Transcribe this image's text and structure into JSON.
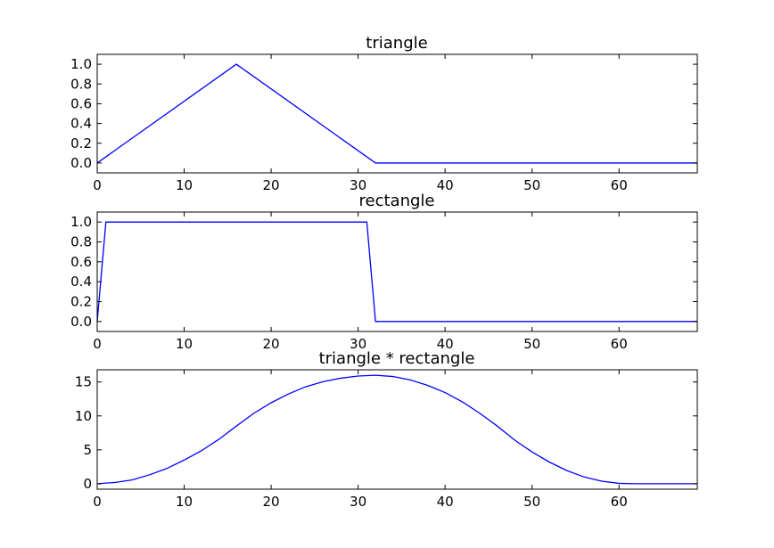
{
  "chart_data": [
    {
      "type": "line",
      "title": "triangle",
      "xlim": [
        0,
        69
      ],
      "ylim": [
        -0.1,
        1.1
      ],
      "xticks": [
        "0",
        "10",
        "20",
        "30",
        "40",
        "50",
        "60"
      ],
      "yticks": [
        "0.0",
        "0.2",
        "0.4",
        "0.6",
        "0.8",
        "1.0"
      ],
      "series": [
        {
          "x": [
            0,
            16,
            32,
            69
          ],
          "y": [
            0.0,
            1.0,
            0.0,
            0.0
          ]
        }
      ],
      "grid": false
    },
    {
      "type": "line",
      "title": "rectangle",
      "xlim": [
        0,
        69
      ],
      "ylim": [
        -0.1,
        1.1
      ],
      "xticks": [
        "0",
        "10",
        "20",
        "30",
        "40",
        "50",
        "60"
      ],
      "yticks": [
        "0.0",
        "0.2",
        "0.4",
        "0.6",
        "0.8",
        "1.0"
      ],
      "series": [
        {
          "x": [
            0,
            1,
            31,
            32,
            69
          ],
          "y": [
            0.0,
            1.0,
            1.0,
            0.0,
            0.0
          ]
        }
      ],
      "grid": false
    },
    {
      "type": "line",
      "title": "triangle * rectangle",
      "xlim": [
        0,
        69
      ],
      "ylim": [
        -0.8,
        16.8
      ],
      "xticks": [
        "0",
        "10",
        "20",
        "30",
        "40",
        "50",
        "60"
      ],
      "yticks": [
        "0",
        "5",
        "10",
        "15"
      ],
      "series": [
        {
          "x": [
            0,
            2,
            4,
            6,
            8,
            10,
            12,
            14,
            16,
            18,
            20,
            22,
            24,
            26,
            28,
            30,
            32,
            34,
            36,
            38,
            40,
            42,
            44,
            46,
            48,
            50,
            52,
            54,
            56,
            58,
            60,
            62,
            63,
            64,
            66,
            69
          ],
          "y": [
            0.0,
            0.19,
            0.56,
            1.31,
            2.25,
            3.5,
            4.88,
            6.56,
            8.5,
            10.38,
            11.94,
            13.25,
            14.31,
            15.06,
            15.56,
            15.88,
            16.0,
            15.81,
            15.31,
            14.5,
            13.44,
            12.06,
            10.38,
            8.5,
            6.44,
            4.69,
            3.19,
            1.94,
            1.0,
            0.38,
            0.06,
            0.0,
            0.0,
            0.0,
            0.0,
            0.0
          ]
        }
      ],
      "grid": false
    }
  ]
}
